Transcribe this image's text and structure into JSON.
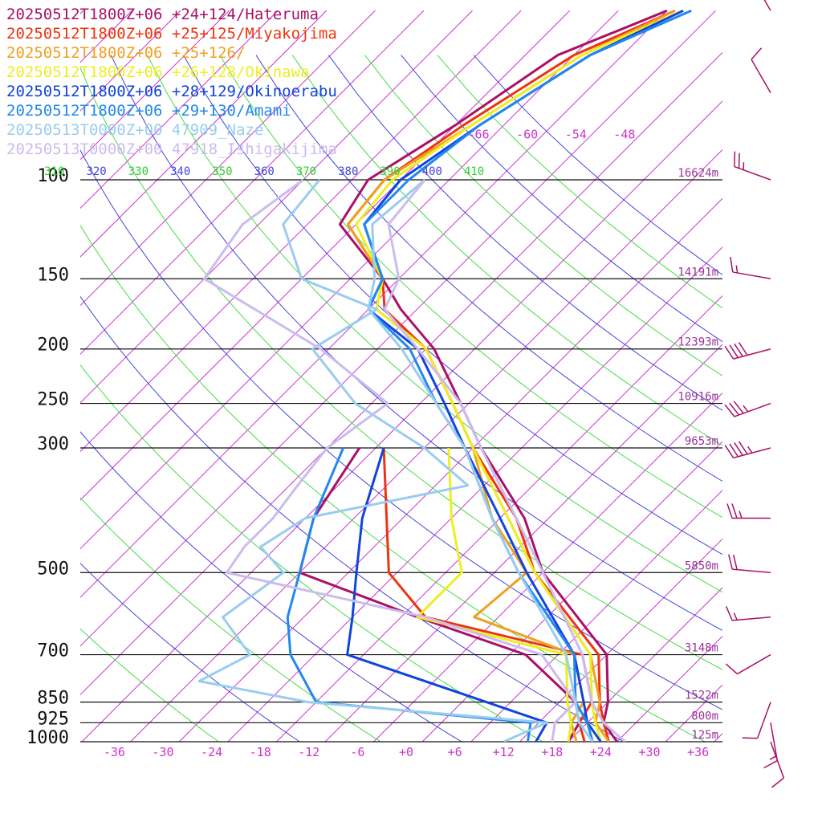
{
  "chart_data": {
    "type": "line",
    "plot": "skew-t log-p diagram",
    "legend": [
      {
        "text": "20250512T1800Z+06 +24+124/Hateruma",
        "color": "#aa1166"
      },
      {
        "text": "20250512T1800Z+06 +25+125/Miyakojima",
        "color": "#ee3311"
      },
      {
        "text": "20250512T1800Z+06 +25+126/",
        "color": "#f0a020"
      },
      {
        "text": "20250512T1800Z+06 +26+128/Okinawa",
        "color": "#eeee22"
      },
      {
        "text": "20250512T1800Z+06 +28+129/Okinoerabu",
        "color": "#1144dd"
      },
      {
        "text": "20250512T1800Z+06 +29+130/Amami",
        "color": "#2288ee"
      },
      {
        "text": "20250513T0000Z+00 47909_Naze",
        "color": "#99ccf0"
      },
      {
        "text": "20250513T0000Z+00 47918_Ishigakijima",
        "color": "#ccbbee"
      }
    ],
    "pressure_levels": [
      {
        "p": 100,
        "label": "100",
        "height": "16624m"
      },
      {
        "p": 150,
        "label": "150",
        "height": "14191m"
      },
      {
        "p": 200,
        "label": "200",
        "height": "12393m"
      },
      {
        "p": 250,
        "label": "250",
        "height": "10916m"
      },
      {
        "p": 300,
        "label": "300",
        "height": "9653m"
      },
      {
        "p": 500,
        "label": "500",
        "height": "5850m"
      },
      {
        "p": 700,
        "label": "700",
        "height": "3148m"
      },
      {
        "p": 850,
        "label": "850",
        "height": "1522m"
      },
      {
        "p": 925,
        "label": "925",
        "height": "800m"
      },
      {
        "p": 1000,
        "label": "1000",
        "height": "125m"
      }
    ],
    "x_ticks": [
      {
        "t": -36,
        "label": "-36"
      },
      {
        "t": -30,
        "label": "-30"
      },
      {
        "t": -24,
        "label": "-24"
      },
      {
        "t": -18,
        "label": "-18"
      },
      {
        "t": -12,
        "label": "-12"
      },
      {
        "t": -6,
        "label": "-6"
      },
      {
        "t": 0,
        "label": "+0"
      },
      {
        "t": 6,
        "label": "+6"
      },
      {
        "t": 12,
        "label": "+12"
      },
      {
        "t": 18,
        "label": "+18"
      },
      {
        "t": 24,
        "label": "+24"
      },
      {
        "t": 30,
        "label": "+30"
      },
      {
        "t": 36,
        "label": "+36"
      }
    ],
    "upper_temp_labels": [
      {
        "t": -66,
        "label": "-66"
      },
      {
        "t": -60,
        "label": "-60"
      },
      {
        "t": -54,
        "label": "-54"
      },
      {
        "t": -48,
        "label": "-48"
      }
    ],
    "theta_labels": [
      {
        "theta": 310,
        "label": "310"
      },
      {
        "theta": 320,
        "label": "320"
      },
      {
        "theta": 330,
        "label": "330"
      },
      {
        "theta": 340,
        "label": "340"
      },
      {
        "theta": 350,
        "label": "350"
      },
      {
        "theta": 360,
        "label": "360"
      },
      {
        "theta": 370,
        "label": "370"
      },
      {
        "theta": 380,
        "label": "380"
      },
      {
        "theta": 390,
        "label": "390"
      },
      {
        "theta": 400,
        "label": "400"
      },
      {
        "theta": 410,
        "label": "410"
      }
    ],
    "xlim": [
      -40,
      40
    ],
    "ylim_hpa": [
      1000,
      100
    ],
    "series": [
      {
        "name": "20250512T1800Z+06 +24+124/Hateruma",
        "color": "#aa1166",
        "temperature": [
          [
            1000,
            26
          ],
          [
            925,
            22
          ],
          [
            850,
            20
          ],
          [
            700,
            14
          ],
          [
            500,
            -4
          ],
          [
            400,
            -13
          ],
          [
            300,
            -27
          ],
          [
            250,
            -35
          ],
          [
            200,
            -45
          ],
          [
            170,
            -54
          ],
          [
            150,
            -60
          ],
          [
            120,
            -72
          ],
          [
            100,
            -74
          ],
          [
            80,
            -70
          ],
          [
            60,
            -66
          ],
          [
            50,
            -58
          ]
        ],
        "dewpoint": [
          [
            1000,
            20
          ],
          [
            925,
            19
          ],
          [
            850,
            16
          ],
          [
            700,
            4
          ],
          [
            600,
            -14
          ],
          [
            500,
            -34
          ],
          [
            400,
            -39
          ],
          [
            300,
            -42
          ]
        ]
      },
      {
        "name": "20250512T1800Z+06 +25+125/Miyakojima",
        "color": "#ee3311",
        "temperature": [
          [
            1000,
            25
          ],
          [
            925,
            22
          ],
          [
            850,
            19
          ],
          [
            700,
            13
          ],
          [
            500,
            -5
          ],
          [
            400,
            -14
          ],
          [
            300,
            -28
          ],
          [
            250,
            -36
          ],
          [
            200,
            -46
          ],
          [
            170,
            -56
          ],
          [
            150,
            -60
          ],
          [
            120,
            -71
          ],
          [
            100,
            -72
          ],
          [
            80,
            -69
          ],
          [
            60,
            -64
          ],
          [
            50,
            -57
          ]
        ],
        "dewpoint": [
          [
            1000,
            22
          ],
          [
            925,
            19
          ],
          [
            850,
            18
          ],
          [
            700,
            11
          ],
          [
            600,
            -13
          ],
          [
            500,
            -23
          ],
          [
            400,
            -30
          ],
          [
            300,
            -39
          ]
        ]
      },
      {
        "name": "20250512T1800Z+06 +25+126/",
        "color": "#f0a020",
        "temperature": [
          [
            1000,
            25
          ],
          [
            925,
            21
          ],
          [
            850,
            19
          ],
          [
            700,
            12
          ],
          [
            500,
            -5
          ],
          [
            400,
            -15
          ],
          [
            300,
            -28
          ],
          [
            250,
            -36
          ],
          [
            200,
            -46
          ],
          [
            170,
            -57
          ],
          [
            150,
            -60
          ],
          [
            120,
            -71
          ],
          [
            100,
            -72
          ],
          [
            80,
            -68
          ],
          [
            60,
            -63
          ],
          [
            50,
            -57
          ]
        ],
        "dewpoint": [
          [
            1000,
            21
          ],
          [
            925,
            18
          ],
          [
            850,
            17
          ],
          [
            700,
            10
          ],
          [
            600,
            -7
          ],
          [
            500,
            -6
          ],
          [
            400,
            -17
          ],
          [
            300,
            -28
          ]
        ]
      },
      {
        "name": "20250512T1800Z+06 +26+128/Okinawa",
        "color": "#eeee22",
        "temperature": [
          [
            1000,
            24
          ],
          [
            925,
            21
          ],
          [
            850,
            18
          ],
          [
            700,
            12
          ],
          [
            500,
            -5
          ],
          [
            400,
            -15
          ],
          [
            300,
            -28
          ],
          [
            250,
            -36
          ],
          [
            200,
            -46
          ],
          [
            170,
            -57
          ],
          [
            150,
            -60
          ],
          [
            120,
            -70
          ],
          [
            100,
            -71
          ],
          [
            80,
            -68
          ],
          [
            60,
            -63
          ],
          [
            50,
            -56
          ]
        ],
        "dewpoint": [
          [
            1000,
            20
          ],
          [
            925,
            18
          ],
          [
            850,
            15
          ],
          [
            700,
            9
          ],
          [
            600,
            -14
          ],
          [
            500,
            -14
          ],
          [
            400,
            -22
          ],
          [
            300,
            -31
          ]
        ]
      },
      {
        "name": "20250512T1800Z+06 +28+129/Okinoerabu",
        "color": "#1144dd",
        "temperature": [
          [
            1000,
            24
          ],
          [
            925,
            20
          ],
          [
            850,
            17
          ],
          [
            700,
            10
          ],
          [
            500,
            -6
          ],
          [
            400,
            -16
          ],
          [
            300,
            -29
          ],
          [
            250,
            -37
          ],
          [
            200,
            -47
          ],
          [
            170,
            -58
          ],
          [
            150,
            -60
          ],
          [
            120,
            -69
          ],
          [
            100,
            -70
          ],
          [
            80,
            -67
          ],
          [
            60,
            -62
          ],
          [
            50,
            -56
          ]
        ],
        "dewpoint": [
          [
            1000,
            16
          ],
          [
            925,
            15
          ],
          [
            850,
            5
          ],
          [
            700,
            -18
          ],
          [
            600,
            -22
          ],
          [
            500,
            -27
          ],
          [
            400,
            -33
          ],
          [
            300,
            -39
          ]
        ]
      },
      {
        "name": "20250512T1800Z+06 +29+130/Amami",
        "color": "#2288ee",
        "temperature": [
          [
            1000,
            23
          ],
          [
            925,
            20
          ],
          [
            850,
            16
          ],
          [
            700,
            10
          ],
          [
            500,
            -7
          ],
          [
            400,
            -17
          ],
          [
            300,
            -29
          ],
          [
            250,
            -38
          ],
          [
            200,
            -48
          ],
          [
            170,
            -58
          ],
          [
            150,
            -60
          ],
          [
            120,
            -69
          ],
          [
            100,
            -69
          ],
          [
            80,
            -67
          ],
          [
            60,
            -62
          ],
          [
            50,
            -55
          ]
        ],
        "dewpoint": [
          [
            1000,
            15
          ],
          [
            925,
            13
          ],
          [
            850,
            -16
          ],
          [
            700,
            -25
          ],
          [
            600,
            -30
          ],
          [
            500,
            -34
          ],
          [
            400,
            -39
          ],
          [
            300,
            -44
          ]
        ]
      },
      {
        "name": "20250513T0000Z+00 47909_Naze",
        "color": "#99ccf0",
        "temperature": [
          [
            1000,
            23
          ],
          [
            925,
            19
          ],
          [
            850,
            16
          ],
          [
            700,
            9
          ],
          [
            500,
            -7
          ],
          [
            400,
            -17
          ],
          [
            300,
            -29
          ],
          [
            250,
            -38
          ],
          [
            200,
            -49
          ],
          [
            170,
            -58
          ],
          [
            150,
            -61
          ],
          [
            120,
            -68
          ],
          [
            100,
            -67
          ]
        ],
        "dewpoint": [
          [
            1000,
            12
          ],
          [
            925,
            15
          ],
          [
            850,
            -17
          ],
          [
            780,
            -33
          ],
          [
            700,
            -30
          ],
          [
            600,
            -38
          ],
          [
            500,
            -36
          ],
          [
            450,
            -42
          ],
          [
            400,
            -40
          ],
          [
            350,
            -24
          ],
          [
            300,
            -34
          ],
          [
            250,
            -48
          ],
          [
            200,
            -60
          ],
          [
            170,
            -57
          ],
          [
            150,
            -70
          ],
          [
            120,
            -79
          ],
          [
            100,
            -80
          ]
        ]
      },
      {
        "name": "20250513T0000Z+00 47918_Ishigakijima",
        "color": "#ccbbee",
        "temperature": [
          [
            1000,
            27
          ],
          [
            925,
            22
          ],
          [
            850,
            18
          ],
          [
            700,
            11
          ],
          [
            500,
            -4
          ],
          [
            400,
            -14
          ],
          [
            300,
            -27
          ],
          [
            250,
            -35
          ],
          [
            200,
            -47
          ],
          [
            170,
            -56
          ],
          [
            150,
            -58
          ],
          [
            120,
            -66
          ],
          [
            100,
            -67
          ]
        ],
        "dewpoint": [
          [
            1000,
            18
          ],
          [
            925,
            16
          ],
          [
            850,
            16
          ],
          [
            700,
            6
          ],
          [
            600,
            -13
          ],
          [
            500,
            -43
          ],
          [
            450,
            -44
          ],
          [
            400,
            -44
          ],
          [
            350,
            -45
          ],
          [
            300,
            -46
          ],
          [
            250,
            -44
          ],
          [
            200,
            -59
          ],
          [
            150,
            -82
          ],
          [
            120,
            -84
          ],
          [
            100,
            -82
          ]
        ]
      }
    ],
    "wind_barbs": [
      {
        "p": 1000,
        "dir": 160,
        "kt": 10,
        "series": "Hateruma"
      },
      {
        "p": 925,
        "dir": 170,
        "kt": 15,
        "series": "Hateruma"
      },
      {
        "p": 850,
        "dir": 200,
        "kt": 10,
        "series": "Hateruma"
      },
      {
        "p": 700,
        "dir": 240,
        "kt": 10,
        "series": "Hateruma"
      },
      {
        "p": 600,
        "dir": 265,
        "kt": 15,
        "series": "Hateruma"
      },
      {
        "p": 500,
        "dir": 275,
        "kt": 20,
        "series": "Hateruma"
      },
      {
        "p": 400,
        "dir": 270,
        "kt": 25,
        "series": "Hateruma"
      },
      {
        "p": 300,
        "dir": 255,
        "kt": 45,
        "series": "Hateruma"
      },
      {
        "p": 250,
        "dir": 250,
        "kt": 35,
        "series": "Hateruma"
      },
      {
        "p": 200,
        "dir": 255,
        "kt": 40,
        "series": "Hateruma"
      },
      {
        "p": 150,
        "dir": 280,
        "kt": 15,
        "series": "Hateruma"
      },
      {
        "p": 100,
        "dir": 290,
        "kt": 25,
        "series": "Hateruma"
      },
      {
        "p": 70,
        "dir": 330,
        "kt": 10,
        "series": "Hateruma"
      },
      {
        "p": 50,
        "dir": 330,
        "kt": 15,
        "series": "Hateruma"
      }
    ]
  }
}
